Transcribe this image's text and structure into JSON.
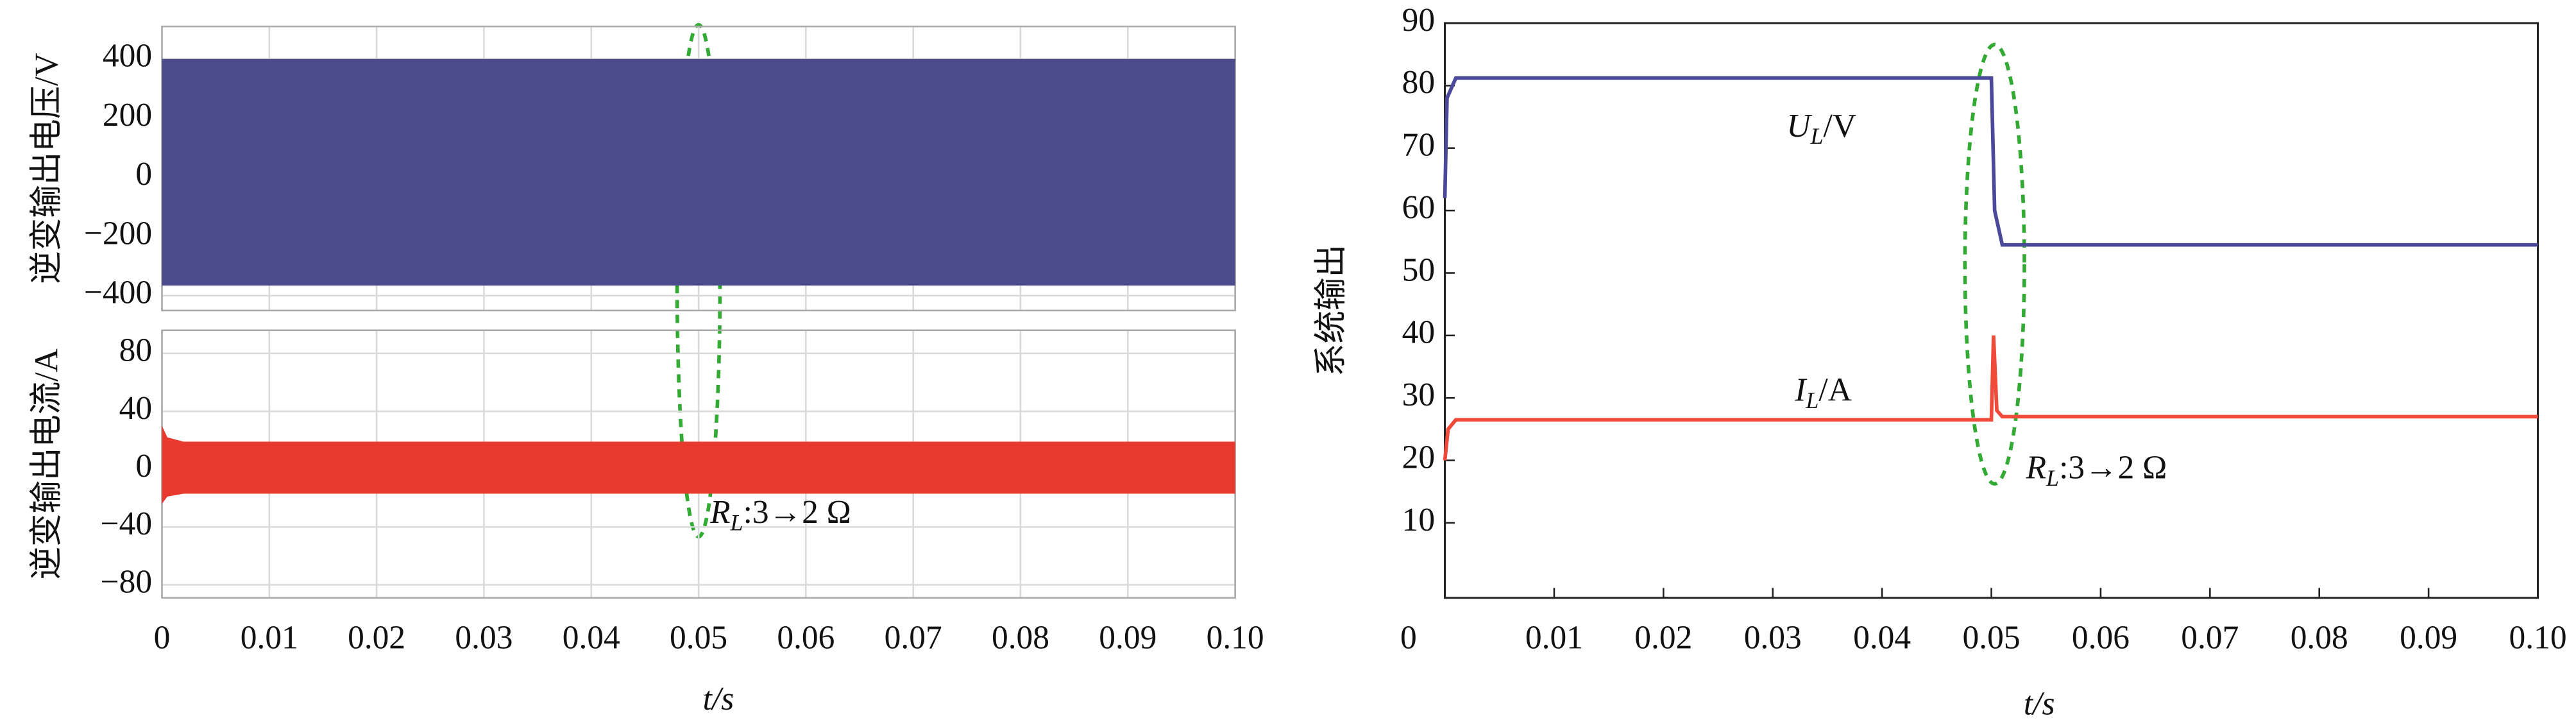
{
  "chart_data": [
    {
      "type": "band",
      "ylabel": "逆变输出电压/V",
      "color": "#4b4a8a",
      "x": [
        0,
        0.1
      ],
      "upper": [
        400,
        400
      ],
      "lower": [
        -366,
        -366
      ],
      "xlim": [
        0,
        0.1
      ],
      "ylim": [
        -450,
        510
      ],
      "xticks": [
        0,
        0.01,
        0.02,
        0.03,
        0.04,
        0.05,
        0.06,
        0.07,
        0.08,
        0.09,
        {
          "value": 0.1,
          "label": "0.10"
        }
      ],
      "yticks": [
        {
          "value": -400,
          "label": "−400"
        },
        {
          "value": -200,
          "label": "−200"
        },
        0,
        200,
        400
      ],
      "grid": true
    },
    {
      "type": "band",
      "ylabel": "逆变输出电流/A",
      "color": "#e8392f",
      "x": [
        0,
        0.0005,
        0.002,
        0.1
      ],
      "upper": [
        30,
        22,
        19,
        19
      ],
      "lower": [
        -24,
        -19,
        -17,
        -17
      ],
      "xlim": [
        0,
        0.1
      ],
      "ylim": [
        -89,
        96
      ],
      "xticks": [
        0,
        0.01,
        0.02,
        0.03,
        0.04,
        0.05,
        0.06,
        0.07,
        0.08,
        0.09,
        {
          "value": 0.1,
          "label": "0.10"
        }
      ],
      "yticks": [
        {
          "value": -80,
          "label": "−80"
        },
        {
          "value": -40,
          "label": "−40"
        },
        0,
        40,
        80
      ],
      "grid": true,
      "xlabel": "t/s",
      "annotation": {
        "main": "R",
        "sub": "L",
        "rest": ":3→2 Ω"
      }
    },
    {
      "type": "line",
      "ylabel": "系统输出",
      "xlabel": "t/s",
      "xlim": [
        0,
        0.1
      ],
      "ylim": [
        -2,
        90
      ],
      "xticks": [
        0,
        0.01,
        0.02,
        0.03,
        0.04,
        0.05,
        0.06,
        0.07,
        0.08,
        0.09,
        {
          "value": 0.1,
          "label": "0.10"
        }
      ],
      "yticks": [
        10,
        20,
        30,
        40,
        50,
        60,
        70,
        80,
        90
      ],
      "grid": false,
      "series": [
        {
          "name": {
            "main": "U",
            "sub": "L",
            "rest": "/V"
          },
          "color": "#4b4a9a",
          "x": [
            0,
            0.0002,
            0.001,
            0.05,
            0.0503,
            0.051,
            0.1
          ],
          "values": [
            62,
            78,
            81.2,
            81.2,
            60,
            54.5,
            54.5
          ]
        },
        {
          "name": {
            "main": "I",
            "sub": "L",
            "rest": "/A"
          },
          "color": "#f04a3a",
          "x": [
            0,
            0.0003,
            0.001,
            0.05,
            0.0502,
            0.0505,
            0.051,
            0.1
          ],
          "values": [
            20,
            25,
            26.5,
            26.5,
            40,
            28,
            27,
            27
          ]
        }
      ],
      "annotation": {
        "main": "R",
        "sub": "L",
        "rest": ":3→2 Ω"
      }
    }
  ]
}
